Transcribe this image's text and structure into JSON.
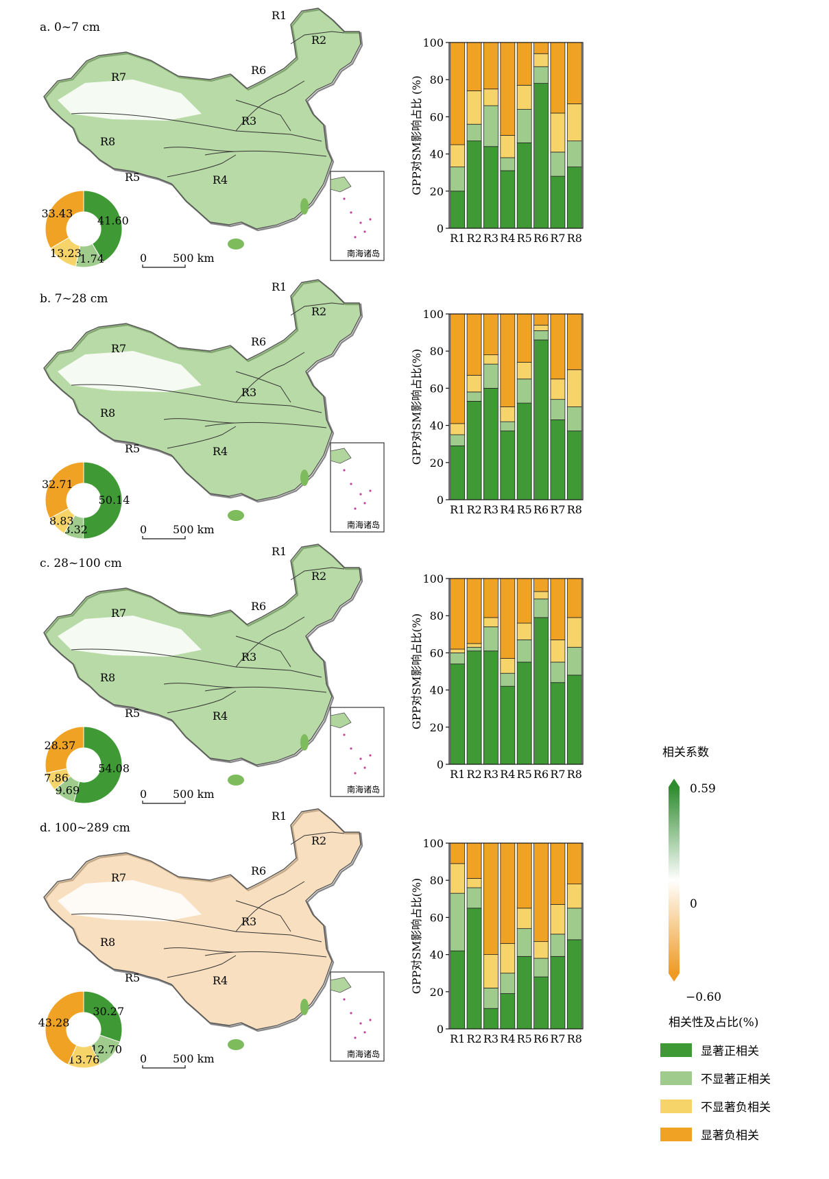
{
  "colors": {
    "sig_pos": "#3f9a35",
    "nonsig_pos": "#9fcc8c",
    "nonsig_neg": "#f6d46a",
    "sig_neg": "#f0a224",
    "grad_top": "#2e8b2e",
    "grad_mid": "#ffffff",
    "grad_bottom": "#ef9a22",
    "map_green": "#7dbb5c",
    "map_orange": "#f2c58a"
  },
  "legend": {
    "colorbar_title": "相关系数",
    "colorbar_max": "0.59",
    "colorbar_zero": "0",
    "colorbar_min": "−0.60",
    "category_title": "相关性及占比(%)",
    "categories": [
      "显著正相关",
      "不显著正相关",
      "不显著负相关",
      "显著负相关"
    ]
  },
  "map": {
    "scale_zero": "0",
    "scale_label": "500 km",
    "inset_label": "南海诸岛",
    "regions": [
      "R1",
      "R2",
      "R3",
      "R4",
      "R5",
      "R6",
      "R7",
      "R8"
    ]
  },
  "chart_data": [
    {
      "type": "bar",
      "stacked": true,
      "title": "a. 0~7 cm",
      "ylabel": "GPP对SM影响占比 (%)",
      "ylim": [
        0,
        100
      ],
      "yticks": [
        0,
        20,
        40,
        60,
        80,
        100
      ],
      "categories": [
        "R1",
        "R2",
        "R3",
        "R4",
        "R5",
        "R6",
        "R7",
        "R8"
      ],
      "series": [
        {
          "values": [
            20,
            47,
            44,
            31,
            46,
            78,
            28,
            33
          ]
        },
        {
          "values": [
            13,
            9,
            22,
            7,
            18,
            9,
            13,
            14
          ]
        },
        {
          "values": [
            12,
            18,
            9,
            12,
            13,
            7,
            21,
            20
          ]
        },
        {
          "values": [
            55,
            26,
            25,
            50,
            23,
            6,
            38,
            33
          ]
        }
      ],
      "donut": [
        41.6,
        11.74,
        13.23,
        33.43
      ],
      "donut_labels": [
        "41.60",
        "11.74",
        "13.23",
        "33.43"
      ]
    },
    {
      "type": "bar",
      "stacked": true,
      "title": "b. 7~28 cm",
      "ylabel": "GPP对SM影响占比(%)",
      "ylim": [
        0,
        100
      ],
      "yticks": [
        0,
        20,
        40,
        60,
        80,
        100
      ],
      "categories": [
        "R1",
        "R2",
        "R3",
        "R4",
        "R5",
        "R6",
        "R7",
        "R8"
      ],
      "series": [
        {
          "values": [
            29,
            53,
            60,
            37,
            52,
            86,
            43,
            37
          ]
        },
        {
          "values": [
            6,
            5,
            13,
            5,
            13,
            5,
            11,
            13
          ]
        },
        {
          "values": [
            6,
            9,
            5,
            8,
            9,
            3,
            11,
            20
          ]
        },
        {
          "values": [
            59,
            33,
            22,
            50,
            26,
            6,
            35,
            30
          ]
        }
      ],
      "donut": [
        50.14,
        8.32,
        8.83,
        32.71
      ],
      "donut_labels": [
        "50.14",
        "8.32",
        "8.83",
        "32.71"
      ]
    },
    {
      "type": "bar",
      "stacked": true,
      "title": "c. 28~100 cm",
      "ylabel": "GPP对SM影响占比(%)",
      "ylim": [
        0,
        100
      ],
      "yticks": [
        0,
        20,
        40,
        60,
        80,
        100
      ],
      "categories": [
        "R1",
        "R2",
        "R3",
        "R4",
        "R5",
        "R6",
        "R7",
        "R8"
      ],
      "series": [
        {
          "values": [
            54,
            61,
            61,
            42,
            55,
            79,
            44,
            48
          ]
        },
        {
          "values": [
            6,
            2,
            13,
            7,
            12,
            10,
            11,
            15
          ]
        },
        {
          "values": [
            2,
            2,
            5,
            8,
            9,
            4,
            12,
            16
          ]
        },
        {
          "values": [
            38,
            35,
            21,
            43,
            24,
            7,
            33,
            21
          ]
        }
      ],
      "donut": [
        54.08,
        9.69,
        7.86,
        28.37
      ],
      "donut_labels": [
        "54.08",
        "9.69",
        "7.86",
        "28.37"
      ]
    },
    {
      "type": "bar",
      "stacked": true,
      "title": "d. 100~289 cm",
      "ylabel": "GPP对SM影响占比(%)",
      "ylim": [
        0,
        100
      ],
      "yticks": [
        0,
        20,
        40,
        60,
        80,
        100
      ],
      "categories": [
        "R1",
        "R2",
        "R3",
        "R4",
        "R5",
        "R6",
        "R7",
        "R8"
      ],
      "series": [
        {
          "values": [
            42,
            65,
            11,
            19,
            39,
            28,
            39,
            48
          ]
        },
        {
          "values": [
            31,
            11,
            11,
            11,
            15,
            10,
            12,
            17
          ]
        },
        {
          "values": [
            16,
            5,
            18,
            16,
            11,
            9,
            16,
            13
          ]
        },
        {
          "values": [
            11,
            19,
            60,
            54,
            35,
            53,
            33,
            22
          ]
        }
      ],
      "donut": [
        30.27,
        12.7,
        13.76,
        43.28
      ],
      "donut_labels": [
        "30.27",
        "12.70",
        "13.76",
        "43.28"
      ]
    }
  ]
}
